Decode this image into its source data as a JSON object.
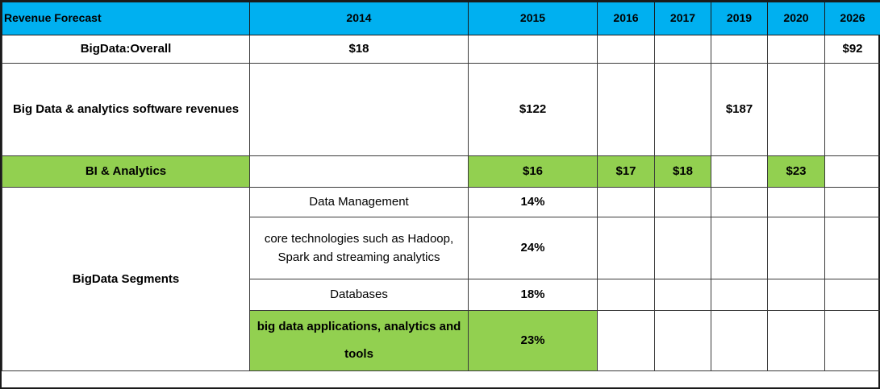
{
  "header": {
    "title": "Revenue Forecast",
    "years": [
      "2014",
      "2015",
      "2016",
      "2017",
      "2019",
      "2020",
      "2026"
    ]
  },
  "rows": {
    "overall": {
      "label": "BigData:Overall",
      "y2014": "$18",
      "y2026": "$92"
    },
    "software": {
      "label": "Big Data & analytics software revenues",
      "y2015": "$122",
      "y2019": "$187"
    },
    "bi": {
      "label": "BI & Analytics",
      "y2015": "$16",
      "y2016": "$17",
      "y2017": "$18",
      "y2020": "$23"
    }
  },
  "segments": {
    "label": "BigData Segments",
    "items": [
      {
        "name": "Data Management",
        "value": "14%"
      },
      {
        "name": "core technologies such as Hadoop, Spark and streaming analytics",
        "value": "24%"
      },
      {
        "name": "Databases",
        "value": "18%"
      },
      {
        "name": "big data applications, analytics and tools",
        "value": "23%"
      }
    ]
  },
  "colors": {
    "header_bg": "#00b0f0",
    "highlight_green": "#92d050"
  }
}
